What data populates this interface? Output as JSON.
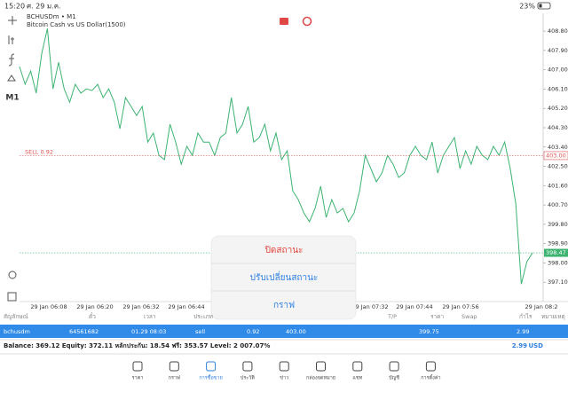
{
  "status": {
    "time": "15:20",
    "date": "ศ. 29 ม.ค.",
    "battery": "23%"
  },
  "toolbar": {
    "timeframe": "M1"
  },
  "chart": {
    "type": "line",
    "symbol": "BCHUSDm • M1",
    "description": "Bitcoin Cash vs US Dollar(1500)",
    "color": "#3cb371",
    "prices": [
      407.15,
      406.32,
      406.94,
      405.91,
      407.77,
      408.92,
      406.11,
      407.35,
      406.11,
      405.49,
      406.32,
      405.91,
      406.11,
      406.03,
      406.32,
      405.7,
      406.11,
      405.49,
      404.25,
      405.7,
      405.29,
      404.87,
      405.29,
      403.63,
      404.05,
      403.01,
      402.81,
      404.46,
      403.63,
      402.6,
      403.43,
      403.01,
      404.05,
      403.63,
      403.63,
      403.01,
      403.84,
      404.05,
      405.7,
      404.05,
      404.46,
      405.29,
      403.63,
      403.84,
      404.46,
      403.22,
      404.05,
      402.81,
      403.22,
      401.36,
      400.95,
      400.33,
      399.92,
      400.54,
      401.57,
      400.12,
      400.95,
      400.33,
      400.54,
      399.92,
      400.33,
      401.36,
      403.01,
      402.4,
      401.78,
      402.19,
      403.01,
      402.6,
      401.98,
      402.19,
      403.01,
      403.43,
      403.01,
      402.81,
      403.63,
      402.19,
      403.01,
      403.43,
      403.84,
      402.4,
      403.22,
      402.6,
      403.43,
      403.01,
      402.81,
      403.43,
      403.01,
      403.63,
      402.4,
      400.74,
      397.02,
      398.06,
      398.47
    ],
    "ylim": [
      396.2,
      409.63
    ],
    "yticks": [
      {
        "value": 408.8,
        "label": "408.80"
      },
      {
        "value": 407.9,
        "label": "407.90"
      },
      {
        "value": 407,
        "label": "407.00"
      },
      {
        "value": 406.1,
        "label": "406.10"
      },
      {
        "value": 405.2,
        "label": "405.20"
      },
      {
        "value": 404.3,
        "label": "404.30"
      },
      {
        "value": 403.4,
        "label": "403.40"
      },
      {
        "value": 402.5,
        "label": "402.50"
      },
      {
        "value": 401.6,
        "label": "401.60"
      },
      {
        "value": 400.7,
        "label": "400.70"
      },
      {
        "value": 399.8,
        "label": "399.80"
      },
      {
        "value": 398.9,
        "label": "398.90"
      },
      {
        "value": 398,
        "label": "398.00"
      },
      {
        "value": 397.1,
        "label": "397.10"
      }
    ],
    "xlabels": [
      "29 Jan 06:08",
      "29 Jan 06:20",
      "29 Jan 06:32",
      "29 Jan 06:44",
      "29 Jan 07:32",
      "29 Jan 07:44",
      "29 Jan 07:56",
      "29 Jan 08:2"
    ],
    "sell_label": "SELL 0.92",
    "sell_price": {
      "value": 403,
      "label": "403.00"
    },
    "bid_price": 398.47
  },
  "popup": [
    "ปิดสถานะ",
    "ปรับเปลี่ยนสถานะ",
    "กราฟ"
  ],
  "table": {
    "header": [
      "สัญลักษณ์",
      "ตั๋ว",
      "เวลา",
      "ประเภท",
      "T/P",
      "ราคา",
      "Swap",
      "กำไร",
      "หมายเหตุ"
    ],
    "row": [
      "bchusdm",
      "64561682",
      "01.29 08:03",
      "sell",
      "0.92",
      "403.00",
      "399.75",
      "2.99"
    ]
  },
  "balance": {
    "text": "Balance: 369.12 Equity: 372.11 หลักประกัน: 18.54 ฟรี: 353.57 Level: 2 007.07%",
    "profit": "2.99",
    "currency": "USD"
  },
  "nav": [
    "ราคา",
    "กราฟ",
    "การซื้อขาย",
    "ประวัติ",
    "ข่าว",
    "กล่องจดหมาย",
    "แชท",
    "บัญชี",
    "การตั้งค่า"
  ]
}
